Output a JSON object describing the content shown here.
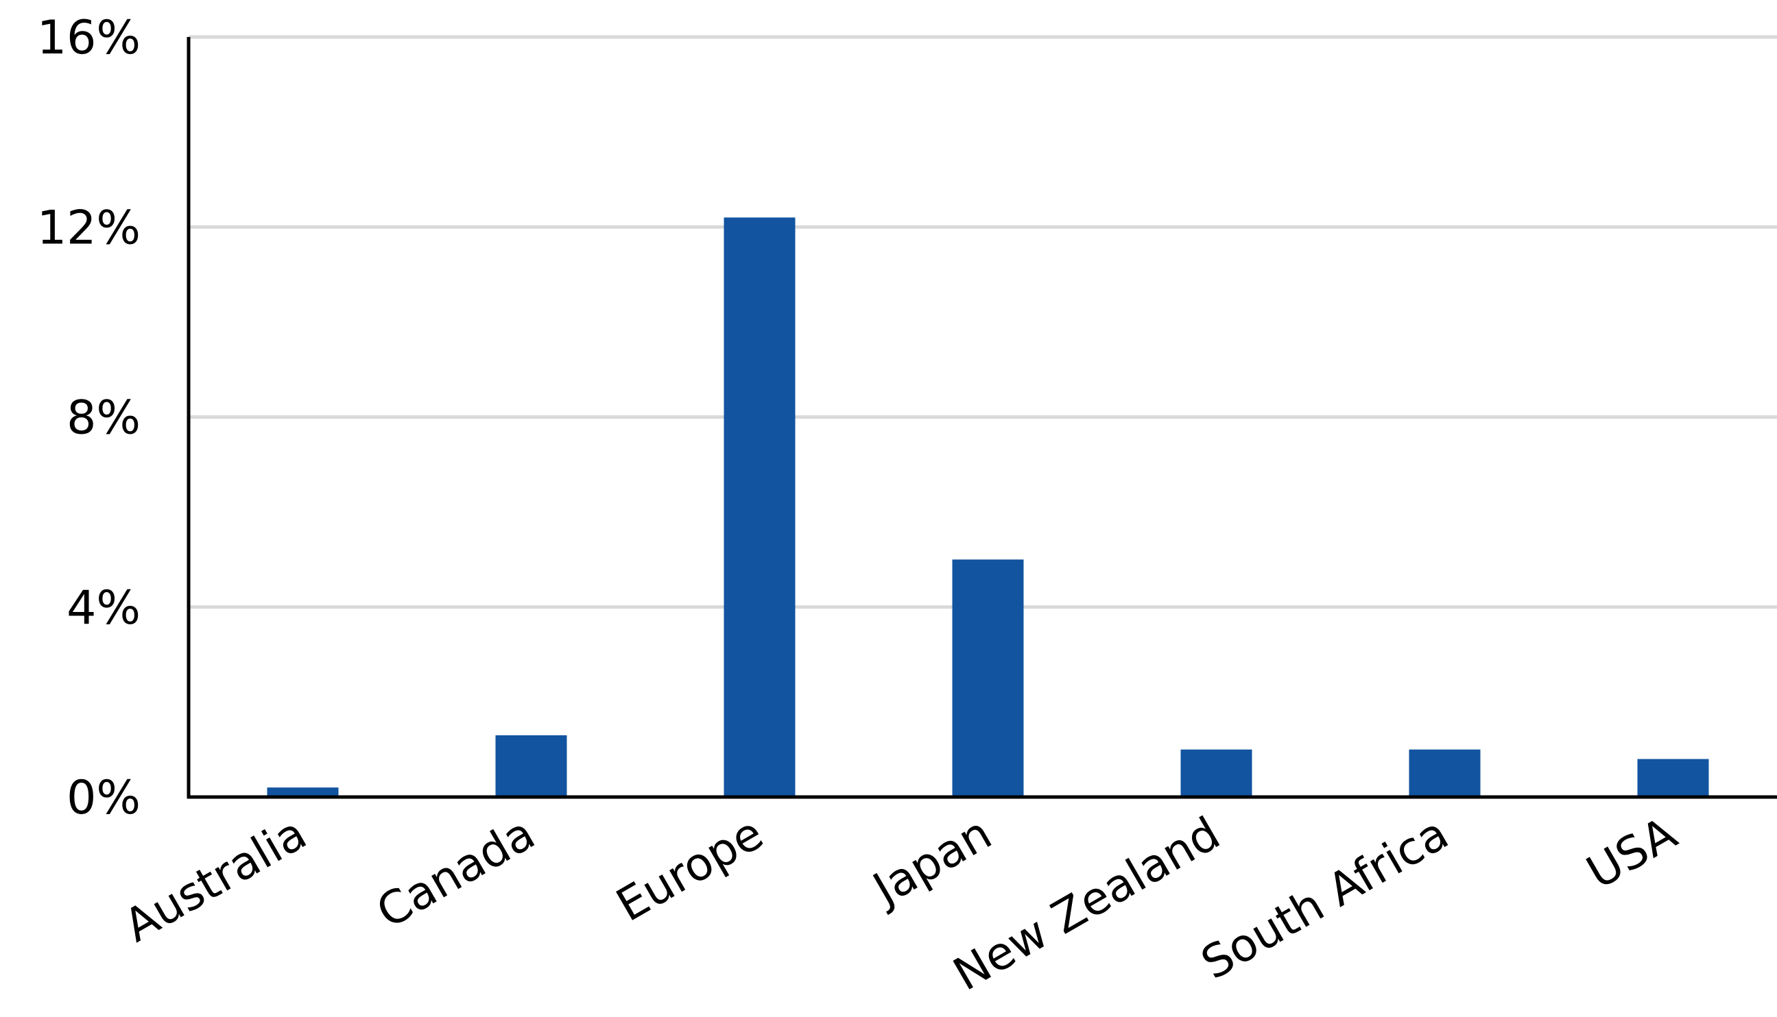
{
  "chart_data": {
    "type": "bar",
    "categories": [
      "Australia",
      "Canada",
      "Europe",
      "Japan",
      "New Zealand",
      "South Africa",
      "USA"
    ],
    "values": [
      0.2,
      1.3,
      12.2,
      5.0,
      1.0,
      1.0,
      0.8
    ],
    "yticks": [
      0,
      4,
      8,
      12,
      16
    ],
    "ytick_labels": [
      "0%",
      "4%",
      "8%",
      "12%",
      "16%"
    ],
    "ylim": [
      0,
      16
    ],
    "y_unit": "percent",
    "grid": true,
    "legend": "none",
    "title": "",
    "xlabel": "",
    "ylabel": "",
    "colors": {
      "bar": "#1254a0",
      "grid": "#d9d9d9",
      "axis": "#000000"
    }
  }
}
